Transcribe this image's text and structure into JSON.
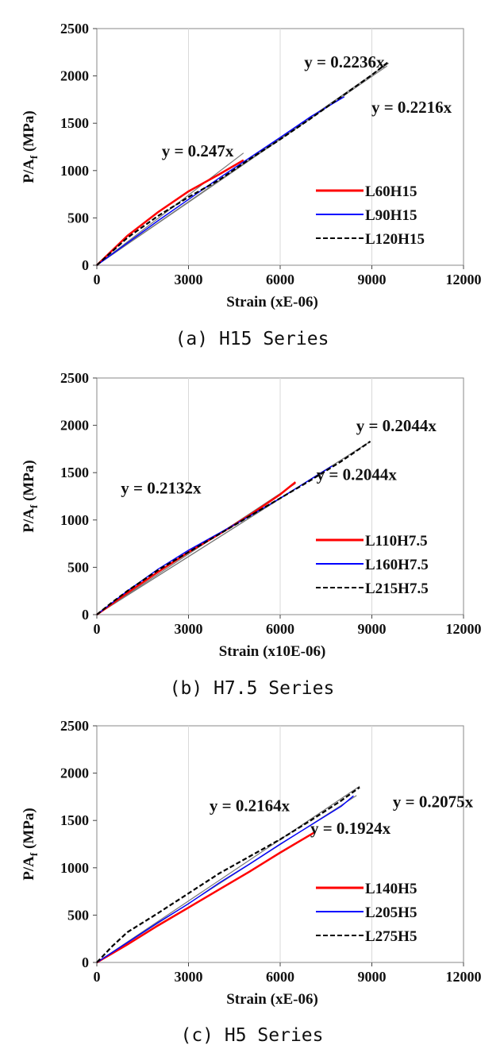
{
  "chart_data": [
    {
      "type": "line",
      "caption": "(a) H15 Series",
      "xlabel": "Strain (xE-06)",
      "ylabel_main": "P/A",
      "ylabel_sub": "f",
      "ylabel_unit": " (MPa)",
      "xlim": [
        0,
        12000
      ],
      "ylim": [
        0,
        2500
      ],
      "xticks": [
        "0",
        "3000",
        "6000",
        "9000",
        "12000"
      ],
      "yticks": [
        "0",
        "500",
        "1000",
        "1500",
        "2000",
        "2500"
      ],
      "grid": "vertical",
      "legend_position": "lower-right",
      "series": [
        {
          "name": "L60H15",
          "color": "#ff0000",
          "dash": "solid",
          "x": [
            0,
            1000,
            2000,
            3000,
            4000,
            4800
          ],
          "y": [
            0,
            310,
            560,
            780,
            960,
            1110
          ]
        },
        {
          "name": "L90H15",
          "color": "#0000ff",
          "dash": "solid",
          "x": [
            0,
            2000,
            4000,
            6000,
            7000,
            8100
          ],
          "y": [
            0,
            470,
            920,
            1350,
            1570,
            1780
          ]
        },
        {
          "name": "L120H15",
          "color": "#000000",
          "dash": "dashed",
          "x": [
            0,
            1000,
            2000,
            3000,
            4000,
            5000,
            6000,
            7000,
            8000,
            9000,
            9550
          ],
          "y": [
            0,
            290,
            520,
            720,
            900,
            1120,
            1330,
            1550,
            1780,
            2010,
            2150
          ]
        }
      ],
      "fit_lines": [
        {
          "slope": 0.247,
          "x_end": 4800
        },
        {
          "slope": 0.2216,
          "x_end": 9500
        },
        {
          "slope": 0.2236,
          "x_end": 9550
        }
      ],
      "annotations": [
        {
          "text": "y = 0.247x",
          "x": 3300,
          "y": 1150
        },
        {
          "text": "y = 0.2236x",
          "x": 8100,
          "y": 2090
        },
        {
          "text": "y = 0.2216x",
          "x": 10300,
          "y": 1610
        }
      ]
    },
    {
      "type": "line",
      "caption": "(b) H7.5 Series",
      "xlabel": "Strain (x10E-06)",
      "ylabel_main": "P/A",
      "ylabel_sub": "f",
      "ylabel_unit": " (MPa)",
      "xlim": [
        0,
        12000
      ],
      "ylim": [
        0,
        2500
      ],
      "xticks": [
        "0",
        "3000",
        "6000",
        "9000",
        "12000"
      ],
      "yticks": [
        "0",
        "500",
        "1000",
        "1500",
        "2000",
        "2500"
      ],
      "grid": "vertical",
      "legend_position": "lower-right",
      "series": [
        {
          "name": "L110H7.5",
          "color": "#ff0000",
          "dash": "solid",
          "x": [
            0,
            1000,
            2000,
            3000,
            4000,
            5000,
            6000,
            6500
          ],
          "y": [
            0,
            230,
            450,
            660,
            850,
            1050,
            1270,
            1400
          ]
        },
        {
          "name": "L160H7.5",
          "color": "#0000ff",
          "dash": "solid",
          "x": [
            0,
            1000,
            2000,
            3000,
            4000,
            5000,
            6000,
            7000,
            7700
          ],
          "y": [
            0,
            250,
            480,
            680,
            860,
            1040,
            1230,
            1430,
            1570
          ]
        },
        {
          "name": "L215H7.5",
          "color": "#000000",
          "dash": "dashed",
          "x": [
            0,
            500,
            1000,
            2000,
            3000,
            4000,
            5000,
            6000,
            7000,
            8000,
            8950
          ],
          "y": [
            0,
            130,
            250,
            470,
            660,
            850,
            1040,
            1230,
            1420,
            1620,
            1830
          ]
        }
      ],
      "fit_lines": [
        {
          "slope": 0.2132,
          "x_end": 6500
        },
        {
          "slope": 0.2044,
          "x_end": 7700
        },
        {
          "slope": 0.2044,
          "x_end": 8950
        }
      ],
      "annotations": [
        {
          "text": "y = 0.2132x",
          "x": 2100,
          "y": 1280
        },
        {
          "text": "y = 0.2044x",
          "x": 9800,
          "y": 1940
        },
        {
          "text": "y = 0.2044x",
          "x": 8500,
          "y": 1420
        }
      ]
    },
    {
      "type": "line",
      "caption": "(c) H5 Series",
      "xlabel": "Strain (xE-06)",
      "ylabel_main": "P/A",
      "ylabel_sub": "f",
      "ylabel_unit": " (MPa)",
      "xlim": [
        0,
        12000
      ],
      "ylim": [
        0,
        2500
      ],
      "xticks": [
        "0",
        "3000",
        "6000",
        "9000",
        "12000"
      ],
      "yticks": [
        "0",
        "500",
        "1000",
        "1500",
        "2000",
        "2500"
      ],
      "grid": "vertical",
      "legend_position": "lower-right",
      "series": [
        {
          "name": "L140H5",
          "color": "#ff0000",
          "dash": "solid",
          "x": [
            0,
            1000,
            2000,
            3000,
            4000,
            5000,
            6000,
            7100
          ],
          "y": [
            0,
            190,
            390,
            580,
            770,
            960,
            1160,
            1370
          ]
        },
        {
          "name": "L205H5",
          "color": "#0000ff",
          "dash": "solid",
          "x": [
            0,
            1000,
            2000,
            3000,
            4000,
            5000,
            6000,
            7000,
            8000,
            8400
          ],
          "y": [
            0,
            210,
            420,
            620,
            840,
            1040,
            1250,
            1450,
            1650,
            1760
          ]
        },
        {
          "name": "L275H5",
          "color": "#000000",
          "dash": "dashed",
          "x": [
            0,
            500,
            1000,
            2000,
            3000,
            4000,
            5000,
            6000,
            7000,
            8000,
            8600
          ],
          "y": [
            0,
            170,
            320,
            520,
            730,
            940,
            1120,
            1300,
            1500,
            1710,
            1850
          ]
        }
      ],
      "fit_lines": [
        {
          "slope": 0.1924,
          "x_end": 7100
        },
        {
          "slope": 0.2075,
          "x_end": 8500
        },
        {
          "slope": 0.2164,
          "x_end": 8600
        }
      ],
      "annotations": [
        {
          "text": "y = 0.2164x",
          "x": 5000,
          "y": 1600
        },
        {
          "text": "y = 0.2075x",
          "x": 11000,
          "y": 1640
        },
        {
          "text": "y = 0.1924x",
          "x": 8300,
          "y": 1360
        }
      ]
    }
  ]
}
